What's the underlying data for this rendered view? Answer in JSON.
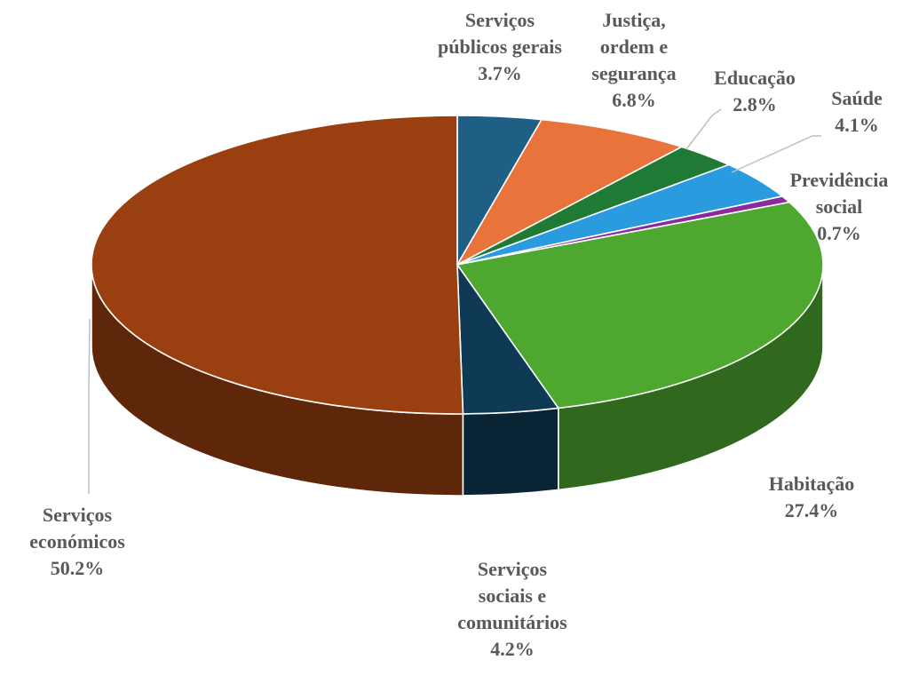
{
  "chart_data": {
    "type": "pie",
    "title": "",
    "slices": [
      {
        "label_lines": [
          "Serviços",
          "públicos gerais"
        ],
        "value_text": "3.7%",
        "value": 3.7,
        "color": "#1f5f86"
      },
      {
        "label_lines": [
          "Justiça,",
          "ordem e",
          "segurança"
        ],
        "value_text": "6.8%",
        "value": 6.8,
        "color": "#e8743b"
      },
      {
        "label_lines": [
          "Educação"
        ],
        "value_text": "2.8%",
        "value": 2.8,
        "color": "#1e7a34"
      },
      {
        "label_lines": [
          "Saúde"
        ],
        "value_text": "4.1%",
        "value": 4.1,
        "color": "#2b9be0"
      },
      {
        "label_lines": [
          "Previdência",
          "social"
        ],
        "value_text": "0.7%",
        "value": 0.7,
        "color": "#8a2a9e"
      },
      {
        "label_lines": [
          "Habitação"
        ],
        "value_text": "27.4%",
        "value": 27.4,
        "color": "#4ea72e"
      },
      {
        "label_lines": [
          "Serviços",
          "sociais e",
          "comunitários"
        ],
        "value_text": "4.2%",
        "value": 4.2,
        "color": "#0e3a55"
      },
      {
        "label_lines": [
          "Serviços",
          "económicos"
        ],
        "value_text": "50.2%",
        "value": 50.2,
        "color": "#9a3f10"
      }
    ]
  }
}
